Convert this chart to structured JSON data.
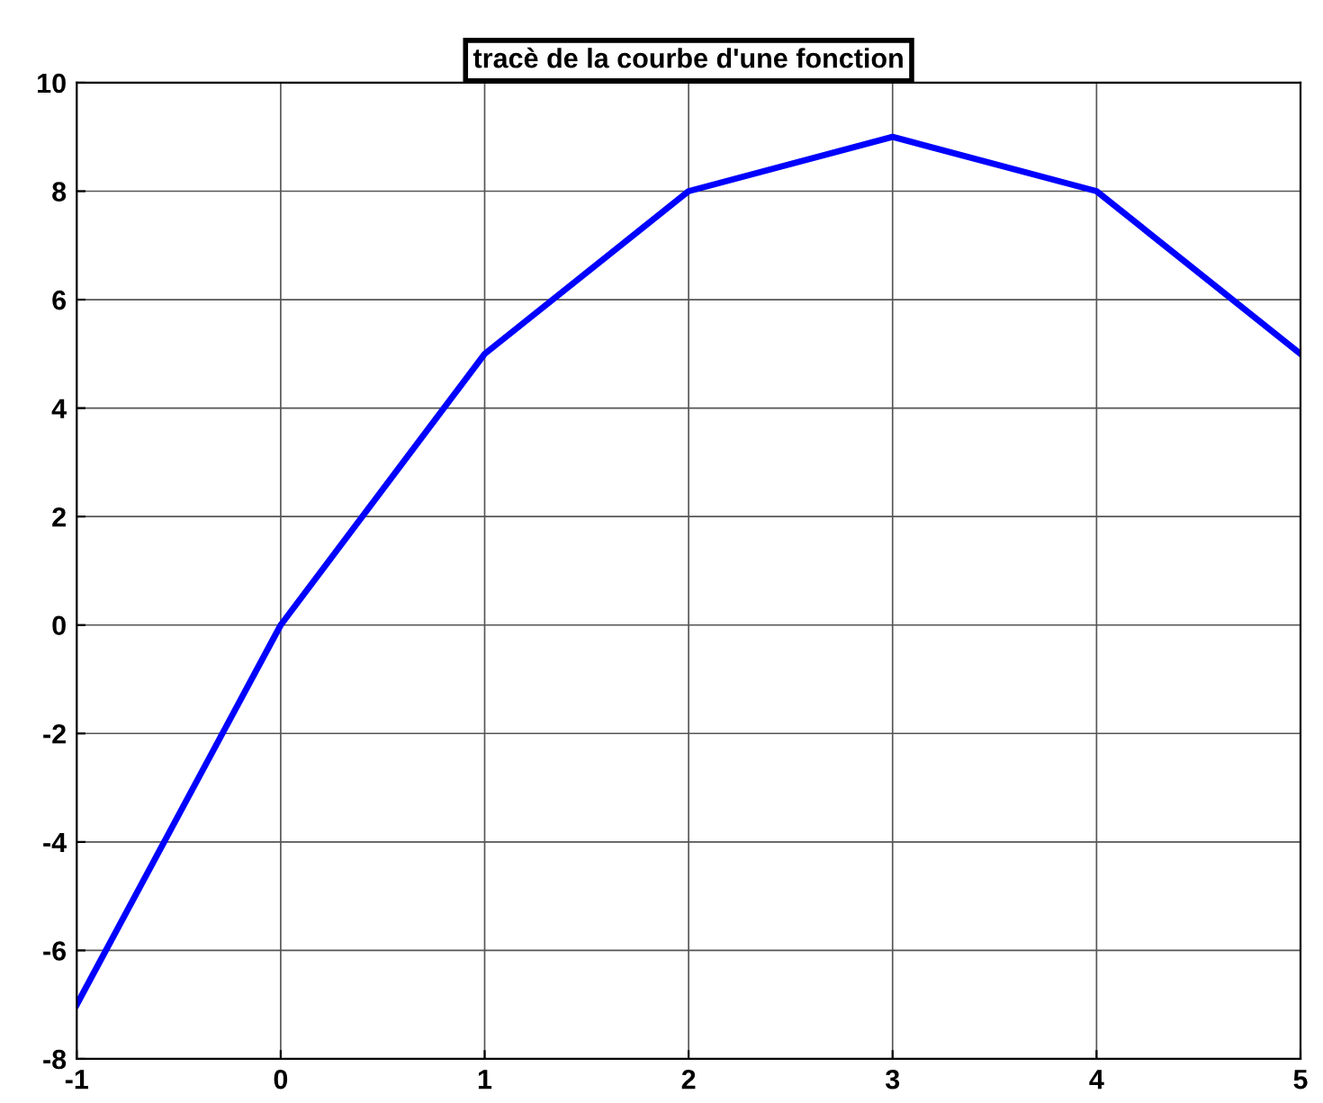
{
  "chart_data": {
    "type": "line",
    "title": "tracè de la courbe d'une fonction",
    "x": [
      -1,
      0,
      1,
      2,
      3,
      4,
      5
    ],
    "series": [
      {
        "color": "#0000ff",
        "values": [
          -7,
          0,
          5,
          8,
          9,
          8,
          5
        ]
      }
    ],
    "xlim": [
      -1,
      5
    ],
    "xticks": [
      -1,
      0,
      1,
      2,
      3,
      4,
      5
    ],
    "ylim": [
      -8,
      10
    ],
    "yticks": [
      -8,
      -6,
      -4,
      -2,
      0,
      2,
      4,
      6,
      8,
      10
    ],
    "grid": true,
    "marker": "none",
    "line_style": "solid",
    "legend": false
  }
}
